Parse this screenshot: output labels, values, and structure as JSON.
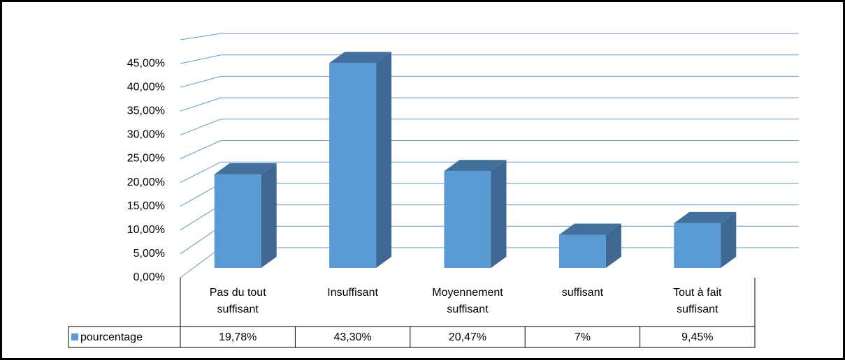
{
  "chart_data": {
    "type": "bar3d",
    "categories": [
      "Pas du tout suffisant",
      "Insuffisant",
      "Moyennement suffisant",
      "suffisant",
      "Tout à fait suffisant"
    ],
    "series": [
      {
        "name": "pourcentage",
        "color": "#5b9bd5",
        "values": [
          19.78,
          43.3,
          20.47,
          7,
          9.45
        ],
        "value_labels": [
          "19,78%",
          "43,30%",
          "20,47%",
          "7%",
          "9,45%"
        ]
      }
    ],
    "ylim": [
      0,
      50
    ],
    "yticks": [
      {
        "value": 0,
        "label": "0,00%"
      },
      {
        "value": 5,
        "label": "5,00%"
      },
      {
        "value": 10,
        "label": "10,00%"
      },
      {
        "value": 15,
        "label": "15,00%"
      },
      {
        "value": 20,
        "label": "20,00%"
      },
      {
        "value": 25,
        "label": "25,00%"
      },
      {
        "value": 30,
        "label": "30,00%"
      },
      {
        "value": 35,
        "label": "35,00%"
      },
      {
        "value": 40,
        "label": "40,00%"
      },
      {
        "value": 45,
        "label": "45,00%"
      }
    ],
    "grid": true,
    "data_table": true
  }
}
